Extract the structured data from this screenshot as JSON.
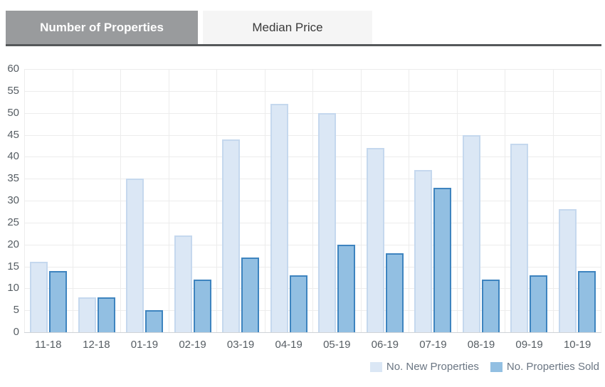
{
  "tabs": [
    {
      "label": "Number of Properties",
      "active": true
    },
    {
      "label": "Median Price",
      "active": false
    }
  ],
  "chart_data": {
    "type": "bar",
    "categories": [
      "11-18",
      "12-18",
      "01-19",
      "02-19",
      "03-19",
      "04-19",
      "05-19",
      "06-19",
      "07-19",
      "08-19",
      "09-19",
      "10-19"
    ],
    "series": [
      {
        "name": "No. New Properties",
        "values": [
          16,
          8,
          35,
          22,
          44,
          52,
          50,
          42,
          37,
          45,
          43,
          28
        ],
        "fill": "#dbe7f5",
        "border": "#c5d8ee"
      },
      {
        "name": "No. Properties Sold",
        "values": [
          14,
          8,
          5,
          12,
          17,
          13,
          20,
          18,
          33,
          12,
          13,
          14
        ],
        "fill": "#92bfe2",
        "border": "#3e84bf"
      }
    ],
    "title": "",
    "xlabel": "",
    "ylabel": "",
    "ylim": [
      0,
      60
    ],
    "ytick_step": 5,
    "grid": true,
    "legend_position": "bottom-right"
  },
  "colors": {
    "active_tab_bg": "#999b9d",
    "active_tab_text": "#ffffff",
    "inactive_tab_bg": "#f5f5f5",
    "inactive_tab_text": "#3a3a3a",
    "tab_underline": "#55585a",
    "gridline": "#ececec",
    "axis_line": "#cfd3d7",
    "tick_text": "#565d63",
    "legend_text": "#6b7683"
  }
}
